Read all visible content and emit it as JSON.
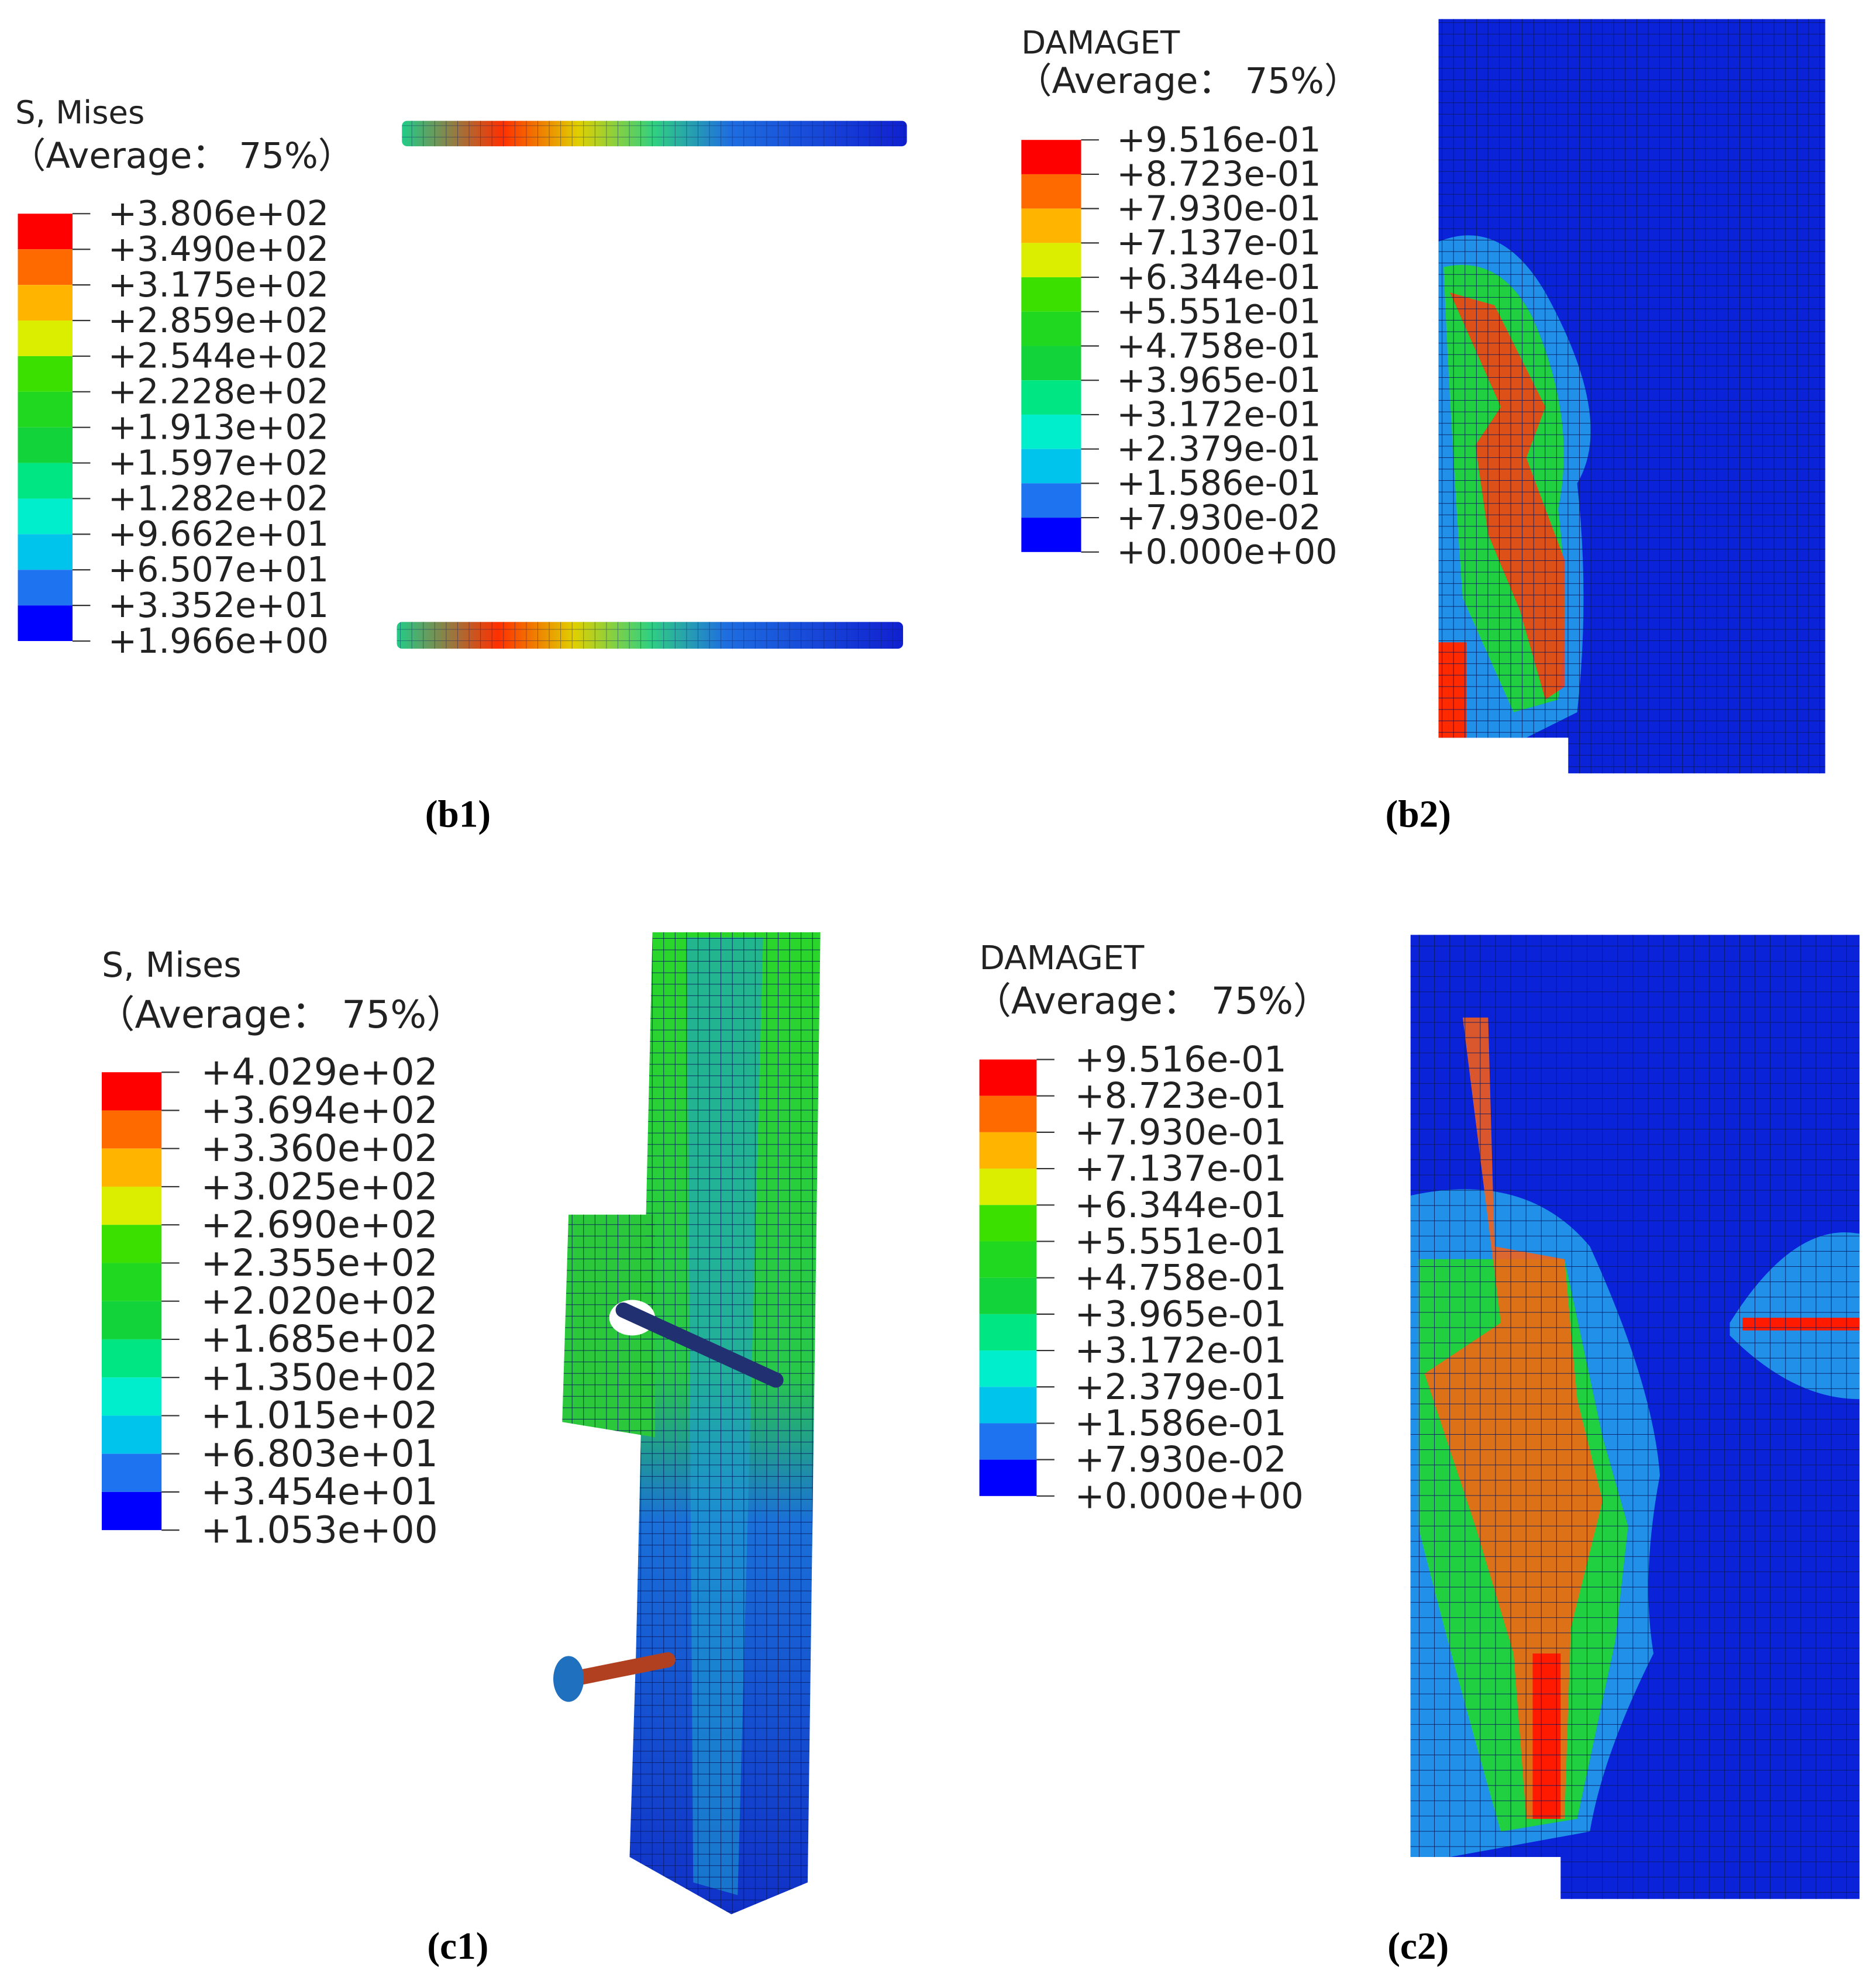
{
  "panels": [
    {
      "legend_title": "S, Mises",
      "legend_subtitle": "（Average： 75%）",
      "legend_values": [
        "+3.806e+02",
        "+3.490e+02",
        "+3.175e+02",
        "+2.859e+02",
        "+2.544e+02",
        "+2.228e+02",
        "+1.913e+02",
        "+1.597e+02",
        "+1.282e+02",
        "+9.662e+01",
        "+6.507e+01",
        "+3.352e+01",
        "+1.966e+00"
      ],
      "caption": "(b1)"
    },
    {
      "legend_title": "DAMAGET",
      "legend_subtitle": "（Average： 75%）",
      "legend_values": [
        "+9.516e-01",
        "+8.723e-01",
        "+7.930e-01",
        "+7.137e-01",
        "+6.344e-01",
        "+5.551e-01",
        "+4.758e-01",
        "+3.965e-01",
        "+3.172e-01",
        "+2.379e-01",
        "+1.586e-01",
        "+7.930e-02",
        "+0.000e+00"
      ],
      "caption": "(b2)"
    },
    {
      "legend_title": "S, Mises",
      "legend_subtitle": "（Average： 75%）",
      "legend_values": [
        "+4.029e+02",
        "+3.694e+02",
        "+3.360e+02",
        "+3.025e+02",
        "+2.690e+02",
        "+2.355e+02",
        "+2.020e+02",
        "+1.685e+02",
        "+1.350e+02",
        "+1.015e+02",
        "+6.803e+01",
        "+3.454e+01",
        "+1.053e+00"
      ],
      "caption": "(c1)"
    },
    {
      "legend_title": "DAMAGET",
      "legend_subtitle": "（Average： 75%）",
      "legend_values": [
        "+9.516e-01",
        "+8.723e-01",
        "+7.930e-01",
        "+7.137e-01",
        "+6.344e-01",
        "+5.551e-01",
        "+4.758e-01",
        "+3.965e-01",
        "+3.172e-01",
        "+2.379e-01",
        "+1.586e-01",
        "+7.930e-02",
        "+0.000e+00"
      ],
      "caption": "(c2)"
    }
  ]
}
